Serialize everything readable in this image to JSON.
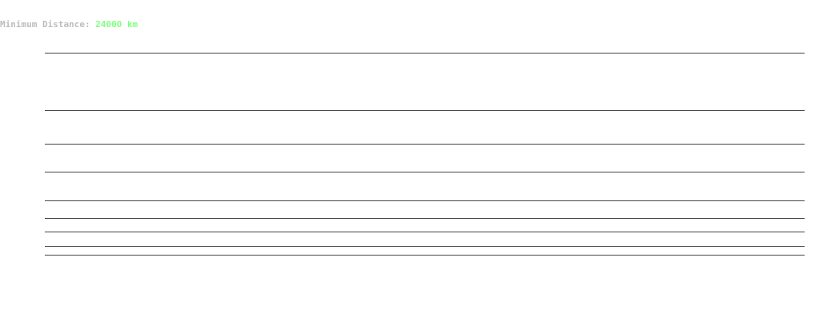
{
  "readout": {
    "label": "Minimum Distance: ",
    "value": "24000 km",
    "value_color": "#80ff80",
    "label_color": "#bdbdbd"
  }
}
